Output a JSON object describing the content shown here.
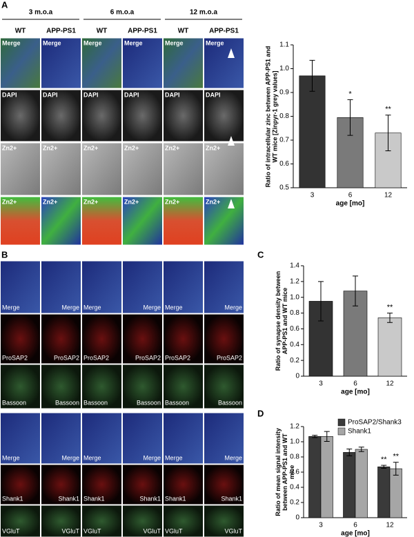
{
  "panel_labels": [
    "A",
    "B",
    "C",
    "D"
  ],
  "panel_a_images": {
    "ages": [
      "3 m.o.a",
      "6 m.o.a",
      "12 m.o.a"
    ],
    "genotypes": [
      "WT",
      "APP-PS1"
    ],
    "rows": [
      "Merge",
      "DAPI",
      "Zn2+",
      "Zn2+"
    ]
  },
  "panel_b_images": {
    "rows": [
      "Merge",
      "ProSAP2",
      "Bassoon",
      "Merge",
      "Shank1",
      "VGluT"
    ]
  },
  "chart_data": [
    {
      "type": "bar",
      "y_label": "Ratio of intracellular zinc between APP-PS1 and WT mice [Zinpyr-1 grey values]",
      "x_label": "age [mo]",
      "categories": [
        "3",
        "6",
        "12"
      ],
      "values": [
        0.97,
        0.795,
        0.73
      ],
      "errors": [
        0.065,
        0.075,
        0.075
      ],
      "annotations": [
        null,
        "*",
        "**"
      ],
      "colors": [
        "#333333",
        "#7a7a7a",
        "#c9c9c9"
      ],
      "ylim": [
        0.5,
        1.1
      ],
      "yticks": [
        0.5,
        0.6,
        0.7,
        0.8,
        0.9,
        {
          "value": 1,
          "label": "1.0"
        },
        1.1
      ]
    },
    {
      "type": "bar",
      "y_label": "Ratio of synapse density between APP-PS1 and WT mice",
      "x_label": "age [mo]",
      "categories": [
        "3",
        "6",
        "12"
      ],
      "values": [
        0.95,
        1.08,
        0.74
      ],
      "errors": [
        0.25,
        0.19,
        0.06
      ],
      "annotations": [
        null,
        null,
        "**"
      ],
      "colors": [
        "#333333",
        "#7a7a7a",
        "#c9c9c9"
      ],
      "ylim": [
        0,
        1.4
      ],
      "yticks": [
        0,
        0.2,
        0.4,
        0.6,
        0.8,
        {
          "value": 1,
          "label": "1.0"
        },
        1.2,
        1.4
      ]
    },
    {
      "type": "bar",
      "y_label": "Ratio of mean signal intensity between APP-PS1 and WT mice",
      "x_label": "age [mo]",
      "categories": [
        "3",
        "6",
        "12"
      ],
      "series": [
        {
          "name": "ProSAP2/Shank3",
          "color": "#3a3a3a",
          "values": [
            1.07,
            0.86,
            0.67
          ],
          "errors": [
            0.015,
            0.045,
            0.02
          ],
          "annotations": [
            null,
            null,
            "**"
          ]
        },
        {
          "name": "Shank1",
          "color": "#a6a6a6",
          "values": [
            1.07,
            0.9,
            0.645
          ],
          "errors": [
            0.065,
            0.03,
            0.085
          ],
          "annotations": [
            null,
            null,
            "**"
          ]
        }
      ],
      "legend": "top-right",
      "ylim": [
        0,
        1.2
      ],
      "yticks": [
        0,
        0.2,
        0.4,
        0.6,
        0.8,
        {
          "value": 1,
          "label": "1.0"
        },
        1.2
      ]
    }
  ]
}
